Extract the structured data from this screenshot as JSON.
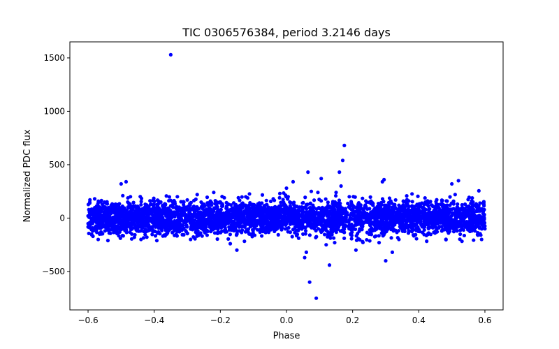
{
  "chart_data": {
    "type": "scatter",
    "title": "TIC 0306576384, period 3.2146 days",
    "xlabel": "Phase",
    "ylabel": "Normalized PDC flux",
    "xlim": [
      -0.655,
      0.655
    ],
    "ylim": [
      -860,
      1650
    ],
    "xticks": [
      -0.6,
      -0.4,
      -0.2,
      0.0,
      0.2,
      0.4,
      0.6
    ],
    "xtick_labels": [
      "−0.6",
      "−0.4",
      "−0.2",
      "0.0",
      "0.2",
      "0.4",
      "0.6"
    ],
    "yticks": [
      -500,
      0,
      500,
      1000,
      1500
    ],
    "ytick_labels": [
      "−500",
      "0",
      "500",
      "1000",
      "1500"
    ],
    "marker_color": "#0000ff",
    "series": [
      {
        "name": "PDC flux",
        "description": "phase-folded light curve; ~4000 points spanning phase -0.6 to 0.6 with typical scatter of about +/-150 to +/-250",
        "x": [
          -0.6,
          -0.598,
          -0.595,
          -0.59,
          -0.585,
          -0.58,
          -0.575,
          -0.57,
          -0.565,
          -0.56,
          -0.55,
          -0.54,
          -0.53,
          -0.52,
          -0.51,
          -0.5,
          -0.495,
          -0.49,
          -0.485,
          -0.48,
          -0.47,
          -0.46,
          -0.45,
          -0.44,
          -0.43,
          -0.42,
          -0.41,
          -0.4,
          -0.39,
          -0.38,
          -0.37,
          -0.36,
          -0.35,
          -0.34,
          -0.33,
          -0.32,
          -0.31,
          -0.3,
          -0.29,
          -0.28,
          -0.27,
          -0.26,
          -0.25,
          -0.24,
          -0.23,
          -0.22,
          -0.21,
          -0.2,
          -0.19,
          -0.18,
          -0.17,
          -0.16,
          -0.15,
          -0.14,
          -0.13,
          -0.12,
          -0.11,
          -0.1,
          -0.09,
          -0.08,
          -0.07,
          -0.06,
          -0.05,
          -0.04,
          -0.03,
          -0.02,
          -0.01,
          0.0,
          0.005,
          0.01,
          0.02,
          0.03,
          0.05,
          0.055,
          0.06,
          0.065,
          0.07,
          0.075,
          0.08,
          0.09,
          0.095,
          0.1,
          0.105,
          0.11,
          0.12,
          0.13,
          0.14,
          0.15,
          0.16,
          0.165,
          0.17,
          0.175,
          0.18,
          0.19,
          0.2,
          0.21,
          0.22,
          0.23,
          0.24,
          0.25,
          0.26,
          0.27,
          0.28,
          0.29,
          0.295,
          0.3,
          0.31,
          0.32,
          0.33,
          0.34,
          0.35,
          0.36,
          0.37,
          0.38,
          0.39,
          0.4,
          0.41,
          0.42,
          0.43,
          0.44,
          0.45,
          0.46,
          0.47,
          0.48,
          0.49,
          0.5,
          0.505,
          0.51,
          0.52,
          0.53,
          0.54,
          0.55,
          0.56,
          0.57,
          0.58,
          0.585,
          0.59,
          0.595,
          0.6
        ],
        "y": [
          20,
          -60,
          140,
          60,
          -120,
          180,
          -40,
          100,
          -150,
          80,
          60,
          -90,
          120,
          -30,
          50,
          320,
          210,
          -100,
          340,
          150,
          40,
          -180,
          110,
          -200,
          70,
          -120,
          130,
          -60,
          40,
          150,
          -160,
          90,
          1530,
          -120,
          200,
          60,
          -40,
          170,
          -200,
          110,
          220,
          -90,
          130,
          -160,
          80,
          240,
          -60,
          150,
          -120,
          90,
          -240,
          60,
          -300,
          110,
          -80,
          40,
          -150,
          70,
          -40,
          120,
          -60,
          40,
          90,
          180,
          60,
          230,
          120,
          280,
          200,
          150,
          340,
          60,
          -150,
          -370,
          -320,
          430,
          -600,
          250,
          120,
          -750,
          240,
          90,
          370,
          -70,
          -250,
          -440,
          140,
          240,
          430,
          300,
          540,
          680,
          -30,
          200,
          120,
          -300,
          80,
          -220,
          160,
          -150,
          60,
          20,
          -230,
          340,
          360,
          -400,
          120,
          -320,
          170,
          -200,
          110,
          -60,
          160,
          -100,
          60,
          40,
          -80,
          150,
          -140,
          120,
          -60,
          100,
          -120,
          80,
          -140,
          320,
          150,
          220,
          350,
          -90,
          130,
          -60,
          160,
          -120,
          90,
          140,
          -200,
          60,
          -100
        ]
      }
    ]
  }
}
